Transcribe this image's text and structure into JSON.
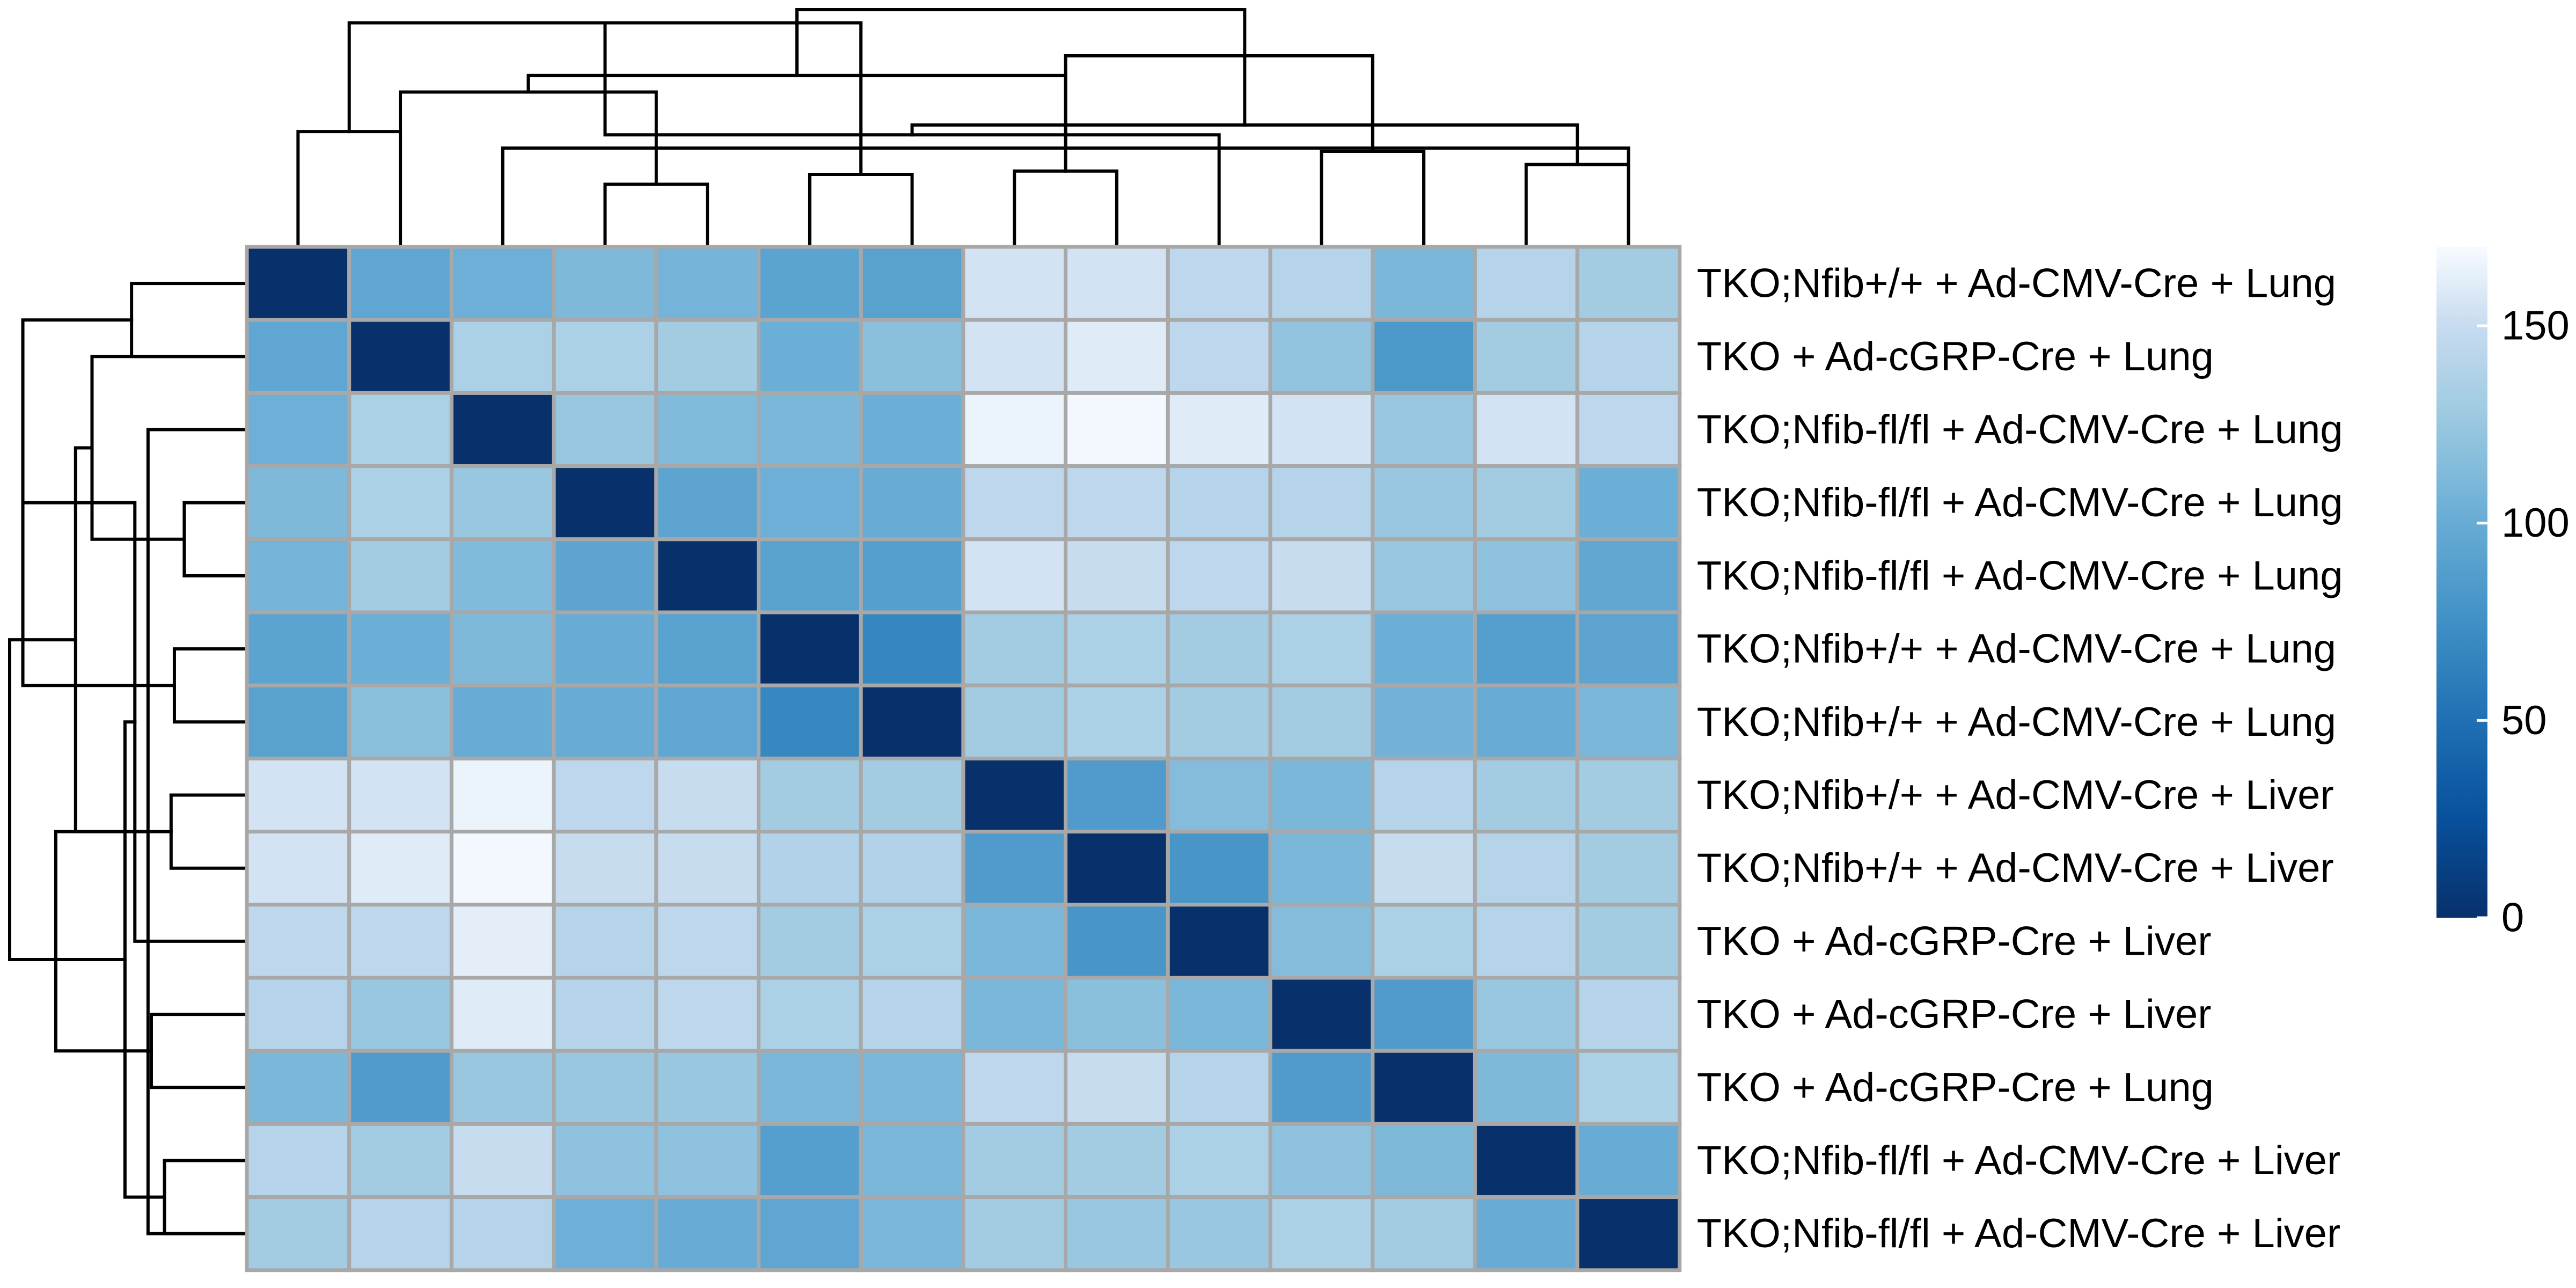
{
  "chart_data": {
    "type": "heatmap",
    "title": "",
    "xlabel": "",
    "ylabel": "",
    "row_labels": [
      "TKO;Nfib+/+ + Ad-CMV-Cre + Lung",
      "TKO + Ad-cGRP-Cre + Lung",
      "TKO;Nfib-fl/fl + Ad-CMV-Cre + Lung",
      "TKO;Nfib-fl/fl + Ad-CMV-Cre + Lung",
      "TKO;Nfib-fl/fl + Ad-CMV-Cre + Lung",
      "TKO;Nfib+/+ + Ad-CMV-Cre + Lung",
      "TKO;Nfib+/+ + Ad-CMV-Cre + Lung",
      "TKO;Nfib+/+ + Ad-CMV-Cre + Liver",
      "TKO;Nfib+/+ + Ad-CMV-Cre + Liver",
      "TKO + Ad-cGRP-Cre + Liver",
      "TKO + Ad-cGRP-Cre + Liver",
      "TKO + Ad-cGRP-Cre + Lung",
      "TKO;Nfib-fl/fl + Ad-CMV-Cre + Liver",
      "TKO;Nfib-fl/fl + Ad-CMV-Cre + Liver"
    ],
    "values": [
      [
        0,
        95,
        103,
        112,
        107,
        92,
        91,
        155,
        155,
        145,
        140,
        110,
        140,
        130
      ],
      [
        95,
        0,
        135,
        135,
        130,
        102,
        118,
        155,
        160,
        145,
        122,
        82,
        130,
        140
      ],
      [
        103,
        135,
        0,
        125,
        113,
        110,
        102,
        165,
        168,
        160,
        155,
        125,
        155,
        145
      ],
      [
        112,
        135,
        125,
        0,
        93,
        103,
        100,
        145,
        145,
        140,
        140,
        125,
        130,
        102
      ],
      [
        107,
        130,
        113,
        93,
        0,
        91,
        88,
        155,
        150,
        145,
        150,
        125,
        120,
        96
      ],
      [
        92,
        102,
        112,
        100,
        91,
        0,
        67,
        130,
        135,
        130,
        135,
        102,
        88,
        93
      ],
      [
        91,
        118,
        100,
        100,
        95,
        68,
        0,
        130,
        135,
        130,
        130,
        106,
        100,
        110
      ],
      [
        155,
        155,
        165,
        145,
        150,
        130,
        130,
        0,
        85,
        115,
        110,
        140,
        130,
        130
      ],
      [
        155,
        160,
        168,
        150,
        150,
        138,
        138,
        85,
        0,
        80,
        110,
        150,
        140,
        130
      ],
      [
        145,
        145,
        162,
        140,
        145,
        130,
        135,
        110,
        80,
        0,
        115,
        135,
        140,
        130
      ],
      [
        140,
        125,
        160,
        140,
        145,
        135,
        140,
        110,
        118,
        110,
        0,
        85,
        125,
        140
      ],
      [
        110,
        85,
        125,
        125,
        125,
        110,
        110,
        145,
        150,
        140,
        85,
        0,
        112,
        135
      ],
      [
        140,
        130,
        150,
        120,
        120,
        88,
        110,
        130,
        130,
        135,
        120,
        112,
        0,
        100
      ],
      [
        130,
        140,
        140,
        103,
        100,
        95,
        110,
        130,
        125,
        125,
        135,
        130,
        100,
        0
      ]
    ],
    "color_scale": {
      "min": 0,
      "max": 170,
      "ticks": [
        150,
        100,
        50,
        0
      ],
      "stops": [
        {
          "pos": 0.0,
          "color": "#08306b"
        },
        {
          "pos": 0.15,
          "color": "#08519c"
        },
        {
          "pos": 0.3,
          "color": "#2171b5"
        },
        {
          "pos": 0.45,
          "color": "#4292c6"
        },
        {
          "pos": 0.6,
          "color": "#6baed6"
        },
        {
          "pos": 0.75,
          "color": "#9ecae1"
        },
        {
          "pos": 0.88,
          "color": "#c6dbef"
        },
        {
          "pos": 1.0,
          "color": "#f7fbff"
        }
      ]
    },
    "dendrogram": {
      "merges": [
        [
          4,
          5,
          0.95
        ],
        [
          3,
          14,
          1.5
        ],
        [
          2,
          15,
          2.35
        ],
        [
          6,
          7,
          1.1
        ],
        [
          1,
          2,
          1.75
        ],
        [
          16,
          17,
          2.6
        ],
        [
          18,
          19,
          3.4
        ],
        [
          8,
          9,
          1.15
        ],
        [
          10,
          21,
          1.7
        ],
        [
          13,
          14,
          1.25
        ],
        [
          11,
          12,
          1.45
        ],
        [
          24,
          23,
          1.85
        ],
        [
          22,
          25,
          2.9
        ],
        [
          20,
          26,
          3.6
        ]
      ],
      "max_height": 3.6
    },
    "grid": false,
    "legend": "right"
  }
}
